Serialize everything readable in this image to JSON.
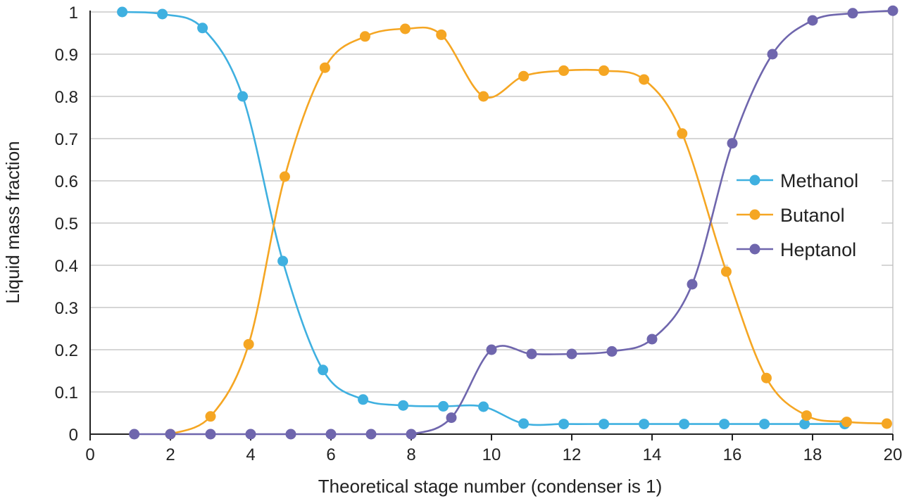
{
  "chart_data": {
    "type": "line",
    "title": "",
    "xlabel": "Theoretical stage number (condenser is 1)",
    "ylabel": "Liquid mass fraction",
    "xlim": [
      0,
      20
    ],
    "ylim": [
      0,
      1
    ],
    "xticks": [
      "0",
      "2",
      "4",
      "6",
      "8",
      "10",
      "12",
      "14",
      "16",
      "18",
      "20"
    ],
    "yticks": [
      "0",
      "0.1",
      "0.2",
      "0.3",
      "0.4",
      "0.5",
      "0.6",
      "0.7",
      "0.8",
      "0.9",
      "1"
    ],
    "grid": "horizontal",
    "legend_position": "right",
    "series": [
      {
        "name": "Methanol",
        "color": "#3fb0e0",
        "points": [
          [
            0.8,
            1.0
          ],
          [
            1.8,
            0.995
          ],
          [
            2.8,
            0.962
          ],
          [
            3.8,
            0.8
          ],
          [
            4.8,
            0.41
          ],
          [
            5.8,
            0.152
          ],
          [
            6.8,
            0.082
          ],
          [
            7.8,
            0.068
          ],
          [
            8.8,
            0.066
          ],
          [
            9.8,
            0.065
          ],
          [
            10.8,
            0.025
          ],
          [
            11.8,
            0.024
          ],
          [
            12.8,
            0.024
          ],
          [
            13.8,
            0.024
          ],
          [
            14.8,
            0.024
          ],
          [
            15.8,
            0.024
          ],
          [
            16.8,
            0.024
          ],
          [
            17.8,
            0.024
          ],
          [
            18.8,
            0.024
          ]
        ]
      },
      {
        "name": "Butanol",
        "color": "#f5a623",
        "points": [
          [
            2.0,
            0.0
          ],
          [
            3.0,
            0.042
          ],
          [
            3.95,
            0.213
          ],
          [
            4.85,
            0.61
          ],
          [
            5.85,
            0.868
          ],
          [
            6.85,
            0.942
          ],
          [
            7.85,
            0.96
          ],
          [
            8.75,
            0.946
          ],
          [
            9.8,
            0.8
          ],
          [
            10.8,
            0.848
          ],
          [
            11.8,
            0.861
          ],
          [
            12.8,
            0.861
          ],
          [
            13.8,
            0.84
          ],
          [
            14.75,
            0.712
          ],
          [
            15.85,
            0.385
          ],
          [
            16.85,
            0.133
          ],
          [
            17.85,
            0.044
          ],
          [
            18.85,
            0.029
          ],
          [
            19.85,
            0.025
          ]
        ]
      },
      {
        "name": "Heptanol",
        "color": "#6f66ad",
        "points": [
          [
            1.1,
            0.0
          ],
          [
            2.0,
            0.0
          ],
          [
            3.0,
            0.0
          ],
          [
            4.0,
            0.0
          ],
          [
            5.0,
            0.0
          ],
          [
            6.0,
            0.0
          ],
          [
            7.0,
            0.0
          ],
          [
            8.0,
            0.0
          ],
          [
            9.0,
            0.039
          ],
          [
            10.0,
            0.2
          ],
          [
            11.0,
            0.19
          ],
          [
            12.0,
            0.19
          ],
          [
            13.0,
            0.196
          ],
          [
            14.0,
            0.225
          ],
          [
            15.0,
            0.355
          ],
          [
            16.0,
            0.689
          ],
          [
            17.0,
            0.9
          ],
          [
            18.0,
            0.98
          ],
          [
            19.0,
            0.997
          ],
          [
            20.0,
            1.003
          ]
        ]
      }
    ]
  }
}
